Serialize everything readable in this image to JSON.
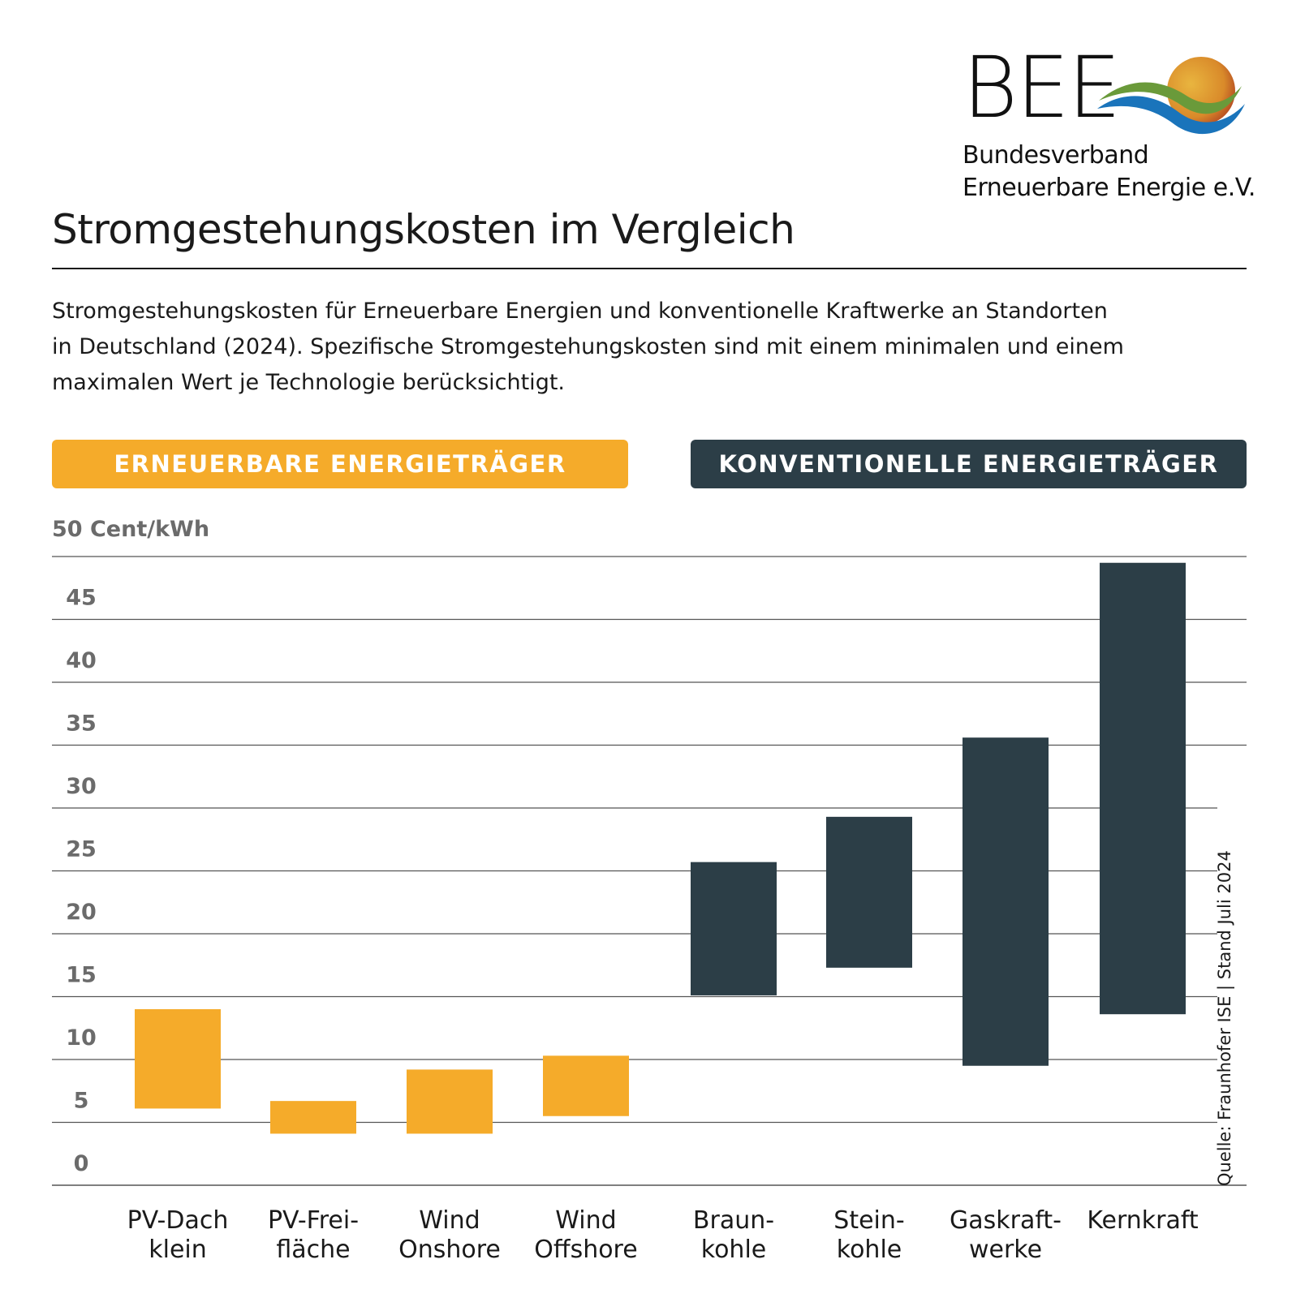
{
  "logo": {
    "abbr": "BEE",
    "line1": "Bundesverband",
    "line2": "Erneuerbare Energie e.V."
  },
  "header": {
    "title": "Stromgestehungskosten im Vergleich",
    "subtitle_lines": [
      "Stromgestehungskosten für Erneuerbare Energien und konventionelle Kraftwerke an Standorten",
      "in Deutschland (2024). Spezifische Stromgestehungskosten sind mit einem minimalen und einem",
      "maximalen Wert je Technologie berücksichtigt."
    ]
  },
  "groups": {
    "renewable": "ERNEUERBARE ENERGIETRÄGER",
    "conventional": "KONVENTIONELLE ENERGIETRÄGER"
  },
  "source": "Quelle: Fraunhofer ISE | Stand Juli 2024",
  "colors": {
    "renewable": "#f5ab2a",
    "conventional": "#2c3e47",
    "grid": "#555555",
    "tick_text": "#6b6b6b"
  },
  "chart_data": {
    "type": "bar",
    "subtype": "floating-range",
    "ylabel": "50 Cent/kWh",
    "ylim": [
      0,
      50
    ],
    "yticks": [
      "0",
      "5",
      "10",
      "15",
      "20",
      "25",
      "30",
      "35",
      "40",
      "45"
    ],
    "categories": [
      {
        "lines": [
          "PV-Dach",
          "klein"
        ],
        "min": 6.1,
        "max": 14.0,
        "group": "renewable"
      },
      {
        "lines": [
          "PV-Frei-",
          "fläche"
        ],
        "min": 4.1,
        "max": 6.7,
        "group": "renewable"
      },
      {
        "lines": [
          "Wind",
          "Onshore"
        ],
        "min": 4.1,
        "max": 9.2,
        "group": "renewable"
      },
      {
        "lines": [
          "Wind",
          "Offshore"
        ],
        "min": 5.5,
        "max": 10.3,
        "group": "renewable"
      },
      {
        "lines": [
          "Braun-",
          "kohle"
        ],
        "min": 15.1,
        "max": 25.7,
        "group": "conventional"
      },
      {
        "lines": [
          "Stein-",
          "kohle"
        ],
        "min": 17.3,
        "max": 29.3,
        "group": "conventional"
      },
      {
        "lines": [
          "Gaskraft-",
          "werke"
        ],
        "min": 9.5,
        "max": 35.6,
        "group": "conventional"
      },
      {
        "lines": [
          "Kernkraft"
        ],
        "min": 13.6,
        "max": 49.5,
        "group": "conventional"
      }
    ]
  }
}
